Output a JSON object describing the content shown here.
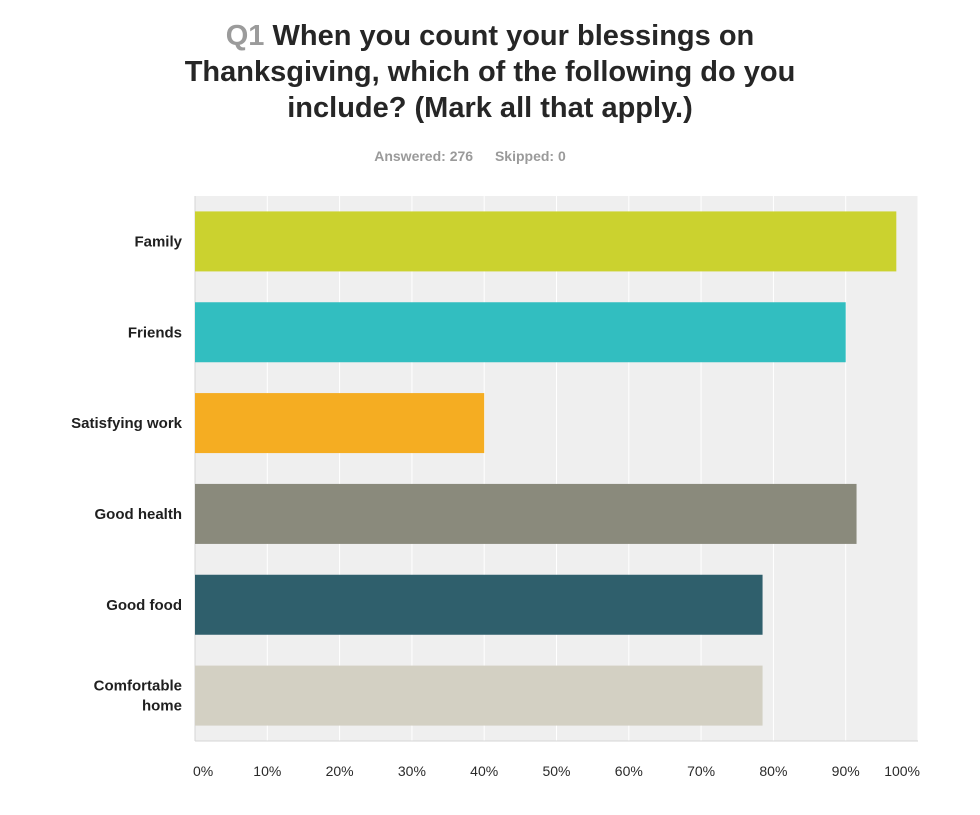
{
  "header": {
    "question_number": "Q1",
    "question_text": "When you count your blessings on Thanksgiving, which of the following do you include? (Mark all that apply.)"
  },
  "stats": {
    "answered": "Answered: 276",
    "skipped": "Skipped: 0"
  },
  "chart_data": {
    "type": "bar",
    "orientation": "horizontal",
    "categories": [
      [
        "Family"
      ],
      [
        "Friends"
      ],
      [
        "Satisfying work"
      ],
      [
        "Good health"
      ],
      [
        "Good food"
      ],
      [
        "Comfortable",
        "home"
      ]
    ],
    "values": [
      0.97,
      0.9,
      0.4,
      0.915,
      0.785,
      0.785
    ],
    "colors": [
      "#cbd22f",
      "#32bec0",
      "#f5ad22",
      "#8a8a7c",
      "#2f5f6c",
      "#d3d0c3"
    ],
    "xlim": [
      0,
      1
    ],
    "xticks": [
      0,
      0.1,
      0.2,
      0.3,
      0.4,
      0.5,
      0.6,
      0.7,
      0.8,
      0.9,
      1.0
    ],
    "tick_labels": [
      "0%",
      "10%",
      "20%",
      "30%",
      "40%",
      "50%",
      "60%",
      "70%",
      "80%",
      "90%",
      "100%"
    ],
    "grid": true,
    "plot_background": "#efefef",
    "grid_color": "#ffffff"
  }
}
